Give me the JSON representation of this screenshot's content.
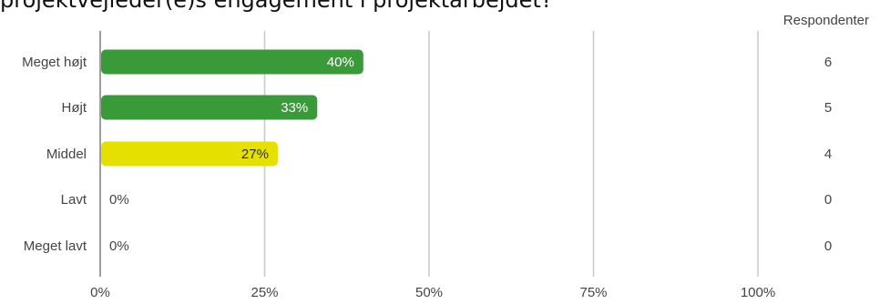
{
  "title": "projektvejleder(e)s engagement i projektarbejdet?",
  "respondents_header": "Respondenter",
  "colors": {
    "green": "#3a9a3a",
    "yellow": "#e6e000",
    "axis": "#9e9e9e",
    "grid": "#c8c8c8",
    "text": "#444444"
  },
  "chart_data": {
    "type": "bar",
    "orientation": "horizontal",
    "categories": [
      "Meget højt",
      "Højt",
      "Middel",
      "Lavt",
      "Meget lavt"
    ],
    "values": [
      40,
      33,
      27,
      0,
      0
    ],
    "value_labels": [
      "40%",
      "33%",
      "27%",
      "0%",
      "0%"
    ],
    "respondents": [
      6,
      5,
      4,
      0,
      0
    ],
    "bar_colors": [
      "green",
      "green",
      "yellow",
      "green",
      "green"
    ],
    "xlim": [
      0,
      100
    ],
    "x_ticks": [
      0,
      25,
      50,
      75,
      100
    ],
    "x_tick_labels": [
      "0%",
      "25%",
      "50%",
      "75%",
      "100%"
    ],
    "grid": true,
    "title": "projektvejleder(e)s engagement i projektarbejdet?"
  }
}
